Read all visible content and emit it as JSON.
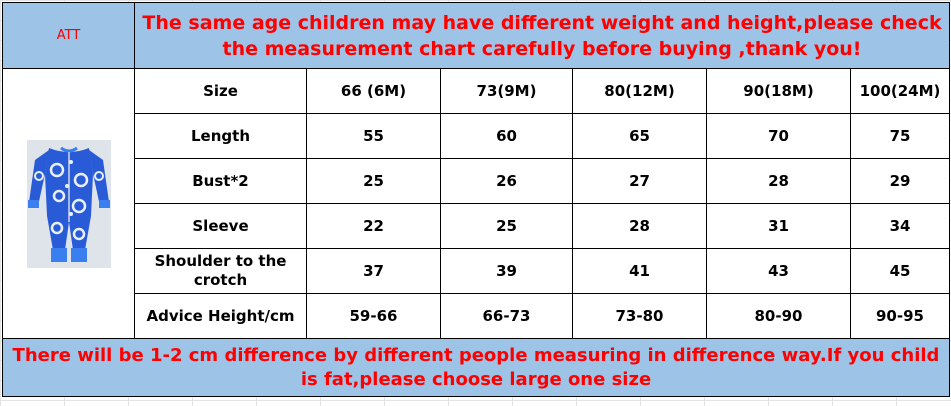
{
  "header": {
    "tag": "ATT",
    "notice": "The same age children may have different weight and height,please check the measurement chart carefully before buying ,thank you!"
  },
  "product_image": {
    "icon": "blue-floral-zip-romper-photo",
    "colors": {
      "fabric": "#2a5bd7",
      "cuff": "#3a7ff0",
      "flower": "#e8f0ff"
    }
  },
  "table": {
    "columns": [
      "Size",
      "66 (6M)",
      "73(9M)",
      "80(12M)",
      "90(18M)",
      "100(24M)"
    ],
    "rows": [
      {
        "label": "Length",
        "values": [
          "55",
          "60",
          "65",
          "70",
          "75"
        ]
      },
      {
        "label": "Bust*2",
        "values": [
          "25",
          "26",
          "27",
          "28",
          "29"
        ]
      },
      {
        "label": "Sleeve",
        "values": [
          "22",
          "25",
          "28",
          "31",
          "34"
        ]
      },
      {
        "label": "Shoulder to the crotch",
        "values": [
          "37",
          "39",
          "41",
          "43",
          "45"
        ]
      },
      {
        "label": "Advice Height/cm",
        "values": [
          "59-66",
          "66-73",
          "73-80",
          "80-90",
          "90-95"
        ]
      }
    ]
  },
  "footer": {
    "note": "There will be 1-2 cm difference by different people measuring in difference way.If you child is fat,please choose large one size"
  },
  "colors": {
    "banner_bg": "#9dc3e6",
    "notice_text": "#ff0000",
    "border": "#000000"
  }
}
